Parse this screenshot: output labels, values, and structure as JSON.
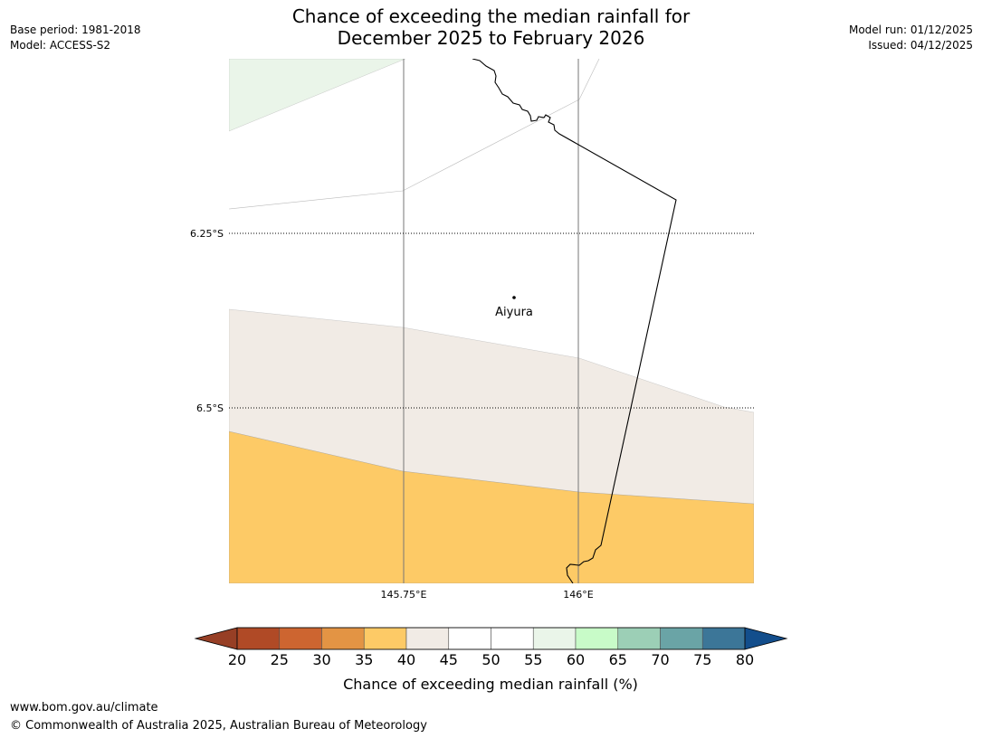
{
  "header": {
    "title_line1": "Chance of exceeding the median rainfall for",
    "title_line2": "December 2025 to February 2026",
    "base_period": "Base period: 1981-2018",
    "model": "Model: ACCESS-S2",
    "model_run": "Model run: 01/12/2025",
    "issued": "Issued: 04/12/2025"
  },
  "map": {
    "latitude_labels": [
      "6.25°S",
      "6.5°S"
    ],
    "longitude_labels": [
      "145.75°E",
      "146°E"
    ],
    "place": {
      "name": "Aiyura"
    }
  },
  "colorbar": {
    "ticks": [
      "20",
      "25",
      "30",
      "35",
      "40",
      "45",
      "50",
      "55",
      "60",
      "65",
      "70",
      "75",
      "80"
    ],
    "colors": [
      "#b04a26",
      "#cd6530",
      "#e39444",
      "#fdca66",
      "#f1ebe5",
      "#ffffff",
      "#ffffff",
      "#eaf5e9",
      "#c8fbc8",
      "#9ccfb6",
      "#6aa4a6",
      "#3c7698"
    ],
    "under_color": "#973f25",
    "over_color": "#134e8c",
    "label": "Chance of exceeding median rainfall (%)"
  },
  "footer": {
    "url": "www.bom.gov.au/climate",
    "copyright": "© Commonwealth of Australia 2025, Australian Bureau of Meteorology"
  }
}
